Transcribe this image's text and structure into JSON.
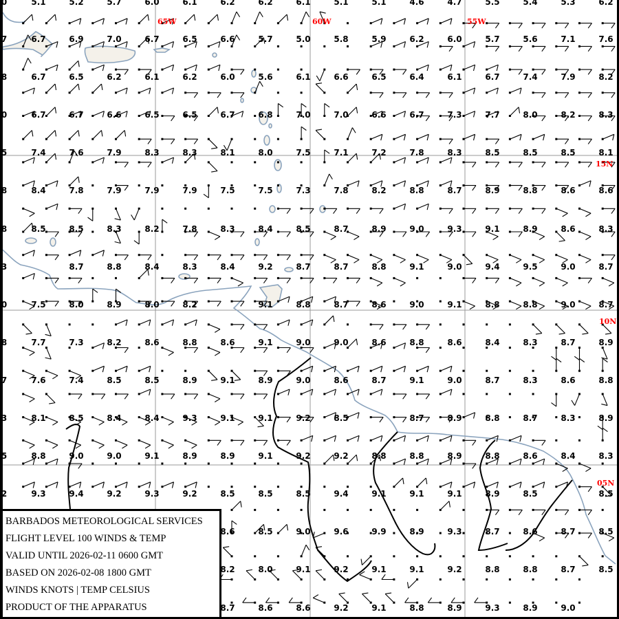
{
  "grid_labels": {
    "longitudes": [
      "65W",
      "60W",
      "55W"
    ],
    "latitudes": [
      "15N",
      "10N",
      "05N"
    ]
  },
  "colors": {
    "grid_label": "#ff0000",
    "gridline": "#999999",
    "coastline": "#8aa3bd",
    "border": "#000000",
    "barb": "#000000"
  },
  "info_box": {
    "lines": [
      "BARBADOS METEOROLOGICAL SERVICES",
      "FLIGHT LEVEL 100 WINDS & TEMP",
      "VALID UNTIL 2026-02-11 0600 GMT",
      "BASED ON 2026-02-08 1800 GMT",
      "WINDS KNOTS | TEMP CELSIUS",
      "PRODUCT OF THE APPARATUS"
    ]
  },
  "temperatures": {
    "left_edge_partial": [
      "0",
      "7",
      "8",
      "0",
      "5",
      "8",
      "8",
      "3",
      "0",
      "8",
      "7",
      "3",
      "5",
      "2",
      "",
      "",
      "",
      ""
    ],
    "rows": [
      [
        "5.1",
        "5.2",
        "5.7",
        "6.0",
        "6.1",
        "6.2",
        "6.2",
        "6.1",
        "5.1",
        "5.1",
        "4.6",
        "4.7",
        "5.5",
        "5.4",
        "5.3",
        "6.2"
      ],
      [
        "6.7",
        "6.9",
        "7.0",
        "6.7",
        "6.5",
        "6.6",
        "5.7",
        "5.0",
        "5.8",
        "5.9",
        "6.2",
        "6.0",
        "5.7",
        "5.6",
        "7.1",
        "7.6"
      ],
      [
        "6.7",
        "6.5",
        "6.2",
        "6.1",
        "6.2",
        "6.0",
        "5.6",
        "6.1",
        "6.6",
        "6.5",
        "6.4",
        "6.1",
        "6.7",
        "7.4",
        "7.9",
        "8.2"
      ],
      [
        "6.7",
        "6.7",
        "6.6",
        "6.5",
        "6.5",
        "6.7",
        "6.8",
        "7.0",
        "7.0",
        "6.6",
        "6.7",
        "7.3",
        "7.7",
        "8.0",
        "8.2",
        "8.3"
      ],
      [
        "7.4",
        "7.6",
        "7.9",
        "8.3",
        "8.3",
        "8.1",
        "8.0",
        "7.5",
        "7.1",
        "7.2",
        "7.8",
        "8.3",
        "8.5",
        "8.5",
        "8.5",
        "8.1"
      ],
      [
        "8.4",
        "7.8",
        "7.9",
        "7.9",
        "7.9",
        "7.5",
        "7.5",
        "7.3",
        "7.8",
        "8.2",
        "8.8",
        "8.7",
        "8.9",
        "8.8",
        "8.6",
        "8.6"
      ],
      [
        "8.5",
        "8.5",
        "8.3",
        "8.2",
        "7.8",
        "8.3",
        "8.4",
        "8.5",
        "8.7",
        "8.9",
        "9.0",
        "9.3",
        "9.1",
        "8.9",
        "8.6",
        "8.3"
      ],
      [
        "",
        "8.7",
        "8.8",
        "8.4",
        "8.3",
        "8.4",
        "9.2",
        "8.7",
        "8.7",
        "8.8",
        "9.1",
        "9.0",
        "9.4",
        "9.5",
        "9.0",
        "8.7"
      ],
      [
        "7.5",
        "8.0",
        "8.9",
        "8.0",
        "8.2",
        "",
        "9.1",
        "8.8",
        "8.7",
        "8.6",
        "9.0",
        "9.1",
        "8.8",
        "8.8",
        "9.0",
        "8.7"
      ],
      [
        "7.7",
        "7.3",
        "8.2",
        "8.6",
        "8.8",
        "8.6",
        "9.1",
        "9.0",
        "9.0",
        "8.6",
        "8.8",
        "8.6",
        "8.4",
        "8.3",
        "8.7",
        "8.9"
      ],
      [
        "7.6",
        "7.4",
        "8.5",
        "8.5",
        "8.9",
        "9.1",
        "8.9",
        "9.0",
        "8.6",
        "8.7",
        "9.1",
        "9.0",
        "8.7",
        "8.3",
        "8.6",
        "8.8"
      ],
      [
        "8.1",
        "8.5",
        "8.4",
        "8.4",
        "9.3",
        "9.1",
        "9.1",
        "9.2",
        "8.5",
        "",
        "8.7",
        "8.9",
        "8.8",
        "8.7",
        "8.3",
        "8.9"
      ],
      [
        "8.8",
        "9.0",
        "9.0",
        "9.1",
        "8.9",
        "8.9",
        "9.1",
        "9.2",
        "9.2",
        "8.8",
        "8.8",
        "8.9",
        "8.8",
        "8.6",
        "8.4",
        "8.3"
      ],
      [
        "9.3",
        "9.4",
        "9.2",
        "9.3",
        "9.2",
        "8.5",
        "8.5",
        "8.5",
        "9.4",
        "9.1",
        "9.1",
        "9.1",
        "8.9",
        "8.5",
        "",
        "8.5"
      ],
      [
        "",
        "",
        "",
        "",
        "",
        "8.6",
        "8.5",
        "9.0",
        "9.6",
        "9.9",
        "8.9",
        "9.3",
        "8.7",
        "8.6",
        "8.7",
        "8.5"
      ],
      [
        "",
        "",
        "",
        "",
        "",
        "8.2",
        "8.0",
        "9.1",
        "9.2",
        "9.1",
        "9.1",
        "9.2",
        "8.8",
        "8.8",
        "8.7",
        "8.5"
      ],
      [
        "",
        "",
        "",
        "",
        "",
        "8.7",
        "8.6",
        "8.6",
        "9.2",
        "9.1",
        "8.8",
        "8.9",
        "9.3",
        "8.9",
        "9.0",
        ""
      ]
    ]
  },
  "wind_barbs": {
    "rows": [
      "NE NE ENE ENE ENE NE ENE NE NE NNE NNE NE NNE NNW . ENE ENE ENE ENE E E E E E E E",
      "NNE ENE ENE ENE ENE NE ENE ENE ENE NNE NE . . . . ENE ENE ENE E ENE E E E E E E",
      "NNE ENE NE ENE E E ENE ENE ENE E . . . SSW E E E ENE ENE ENE ENE E E E E E",
      "ENE NE NE NE ENE ENE ENE E E E NNE . . NW NE E E E E ENE ENE ENE E E E E",
      "ENE NE ENE ENE ENE ENE E E NE ENE . N N N NE ENE ENE E E ENE ENE NE E E E E",
      "NE NE NE NE NE E E E SE SSW . . N NW NNE ENE ENE ENE E ENE E ENE ENE E E ENE",
      "ENE NE NNE ENE E E ENE NE SE . . . . N NE NE ENE ENE ENE E E E E E E E",
      "ENE ENE NE . E . . . S . . . . NNE ENE ENE ENE ENE ENE E E E E E ENE E",
      "ESE ENE E S SSE SSW . . . . . E E E E E ENE ENE E E E E E ESE ESE E",
      "NE E E . SSE S N E ESE E E E E ESE ESE E E E E E ESE E ESE SE ESE E",
      "ENE E ENE ENE E E . E E E E E E ESE ESE ESE ESE ESE ESE SE ESE ESE ESE ESE ESE E",
      "ENE E E . . NE E E E ESE E E E E E ESE ESE . . E E ESE ESE ESE E ESE",
      "ESE E E N N E E E E E E ENE ENE ENE E ESE . . . ESE ESE ESE ESE ESE ESE ESE",
      "SE SSE . . ENE ENE ENE ENE ESE E E ENE ENE NE . E E E . . . . SE SE SE SE",
      "ESE SSE . ENE E . ESE E ESE E E E E ENE NE ENE ENE E . . . . . S S SSE",
      "ESE ESE ESE ENE ENE ENE . . SE SE E E ENE ENE ENE ENE ENE ENE ENE . . . . N N N",
      "ESE SE E E E ENE E E ESE E E ENE ENE ENE ENE ENE E E ENE . . . . S SSW SSE",
      "ESE ESE ESE ESE ESE ESE ESE ESE ESE ESE SE E E ENE ENE E E E E ENE . . . . . S",
      "ESE ESE ESE ESE ESE ESE ESE ESE E E E E ENE ENE ENE ENE ENE ENE ENE E ENE ENE E . . N",
      "ENE ENE E . . . . . . . . . . NE NE NE ENE ENE ENE E ENE ENE ENE ESE ESE .",
      "ENE ENE ENE ENE ENE ENE ENE ENE . . . . . . . . NE NE ENE ENE ENE ENE ENE ENE E SE",
      ". . . . . . . . . NE . . . . . . . . NE . E E E E E .",
      ". . . . . . . . . N NE NE . WSW . . . . . . . . ESE E E ESE",
      ". . . . . . . . . NW . . NNE NW . SW . . . . . . . . SE .",
      ". . . . . . . . . W NW NW NW NW . WNW W SW . . . . . . .",
      ". . . . . . . . . . W W W WNW NW NW NW W W W W . . . ."
    ]
  }
}
